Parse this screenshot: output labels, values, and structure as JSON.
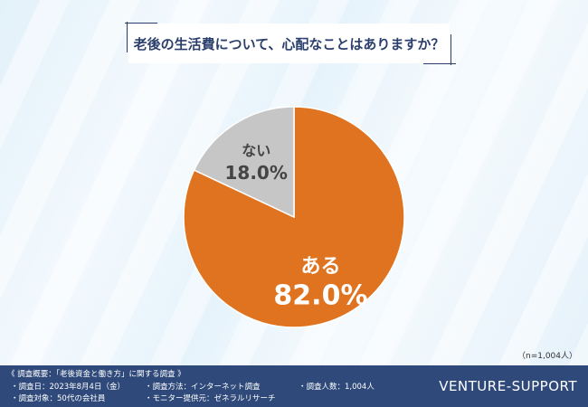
{
  "chart_data": {
    "type": "pie",
    "title": "老後の生活費について、心配なことはありますか？",
    "slices": [
      {
        "label": "ある",
        "value": 82.0,
        "display": "82.0%",
        "color": "#e0731f"
      },
      {
        "label": "ない",
        "value": 18.0,
        "display": "18.0%",
        "color": "#c6c6c6"
      }
    ],
    "sample_note": "（n=1,004人）"
  },
  "footer": {
    "heading": "《 調査概要：「老後資金と働き方」に関する調査 》",
    "items": [
      "・調査日：2023年8月4日（金）",
      "・調査方法：インターネット調査",
      "・調査人数：1,004人",
      "・調査対象：50代の会社員",
      "・モニター提供元：ゼネラルリサーチ"
    ],
    "brand": "VENTURE-SUPPORT"
  }
}
